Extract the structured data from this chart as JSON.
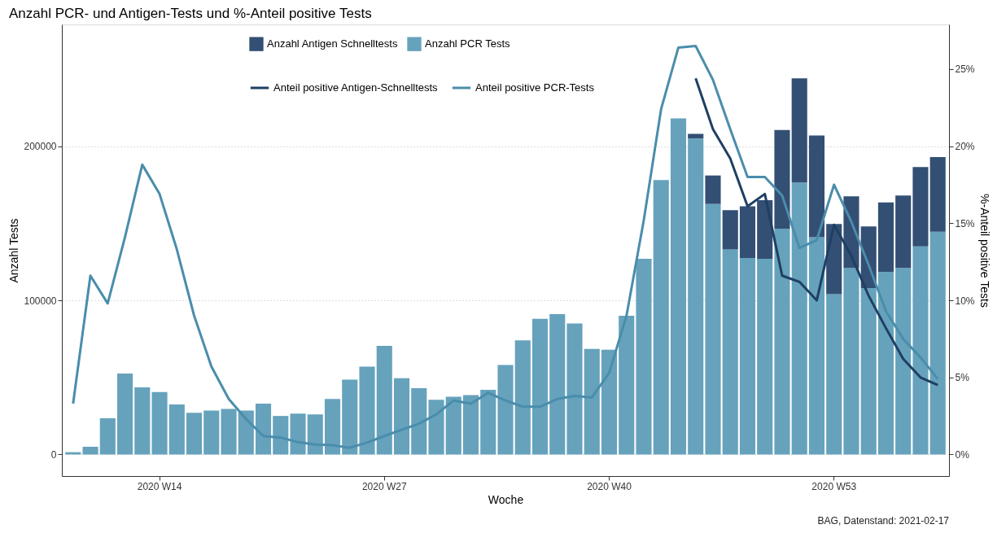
{
  "chart_data": {
    "type": "bar",
    "title": "Anzahl PCR- und Antigen-Tests und %-Anteil positive Tests",
    "xlabel": "Woche",
    "ylabel": "Anzahl Tests",
    "y2label": "%-Anteil positive Tests",
    "categories": [
      null,
      null,
      null,
      null,
      null,
      "2020 W14",
      null,
      null,
      null,
      null,
      null,
      null,
      null,
      null,
      null,
      null,
      null,
      null,
      "2020 W27",
      null,
      null,
      null,
      null,
      null,
      null,
      null,
      null,
      null,
      null,
      null,
      null,
      "2020 W40",
      null,
      null,
      null,
      null,
      null,
      null,
      null,
      null,
      null,
      null,
      null,
      null,
      "2020 W53",
      null,
      null,
      null,
      null,
      null,
      null
    ],
    "stacked": true,
    "series": [
      {
        "name": "Anzahl PCR Tests",
        "color": "#66a2bc",
        "values": [
          1500,
          5000,
          23500,
          52500,
          43500,
          40500,
          32500,
          27000,
          28500,
          29500,
          28500,
          33000,
          25000,
          26500,
          26000,
          36000,
          48500,
          57000,
          70500,
          49500,
          43000,
          35500,
          37500,
          38500,
          42000,
          58000,
          74000,
          88000,
          91000,
          85000,
          68500,
          68000,
          90000,
          127000,
          178000,
          218000,
          205000,
          162500,
          133000,
          127500,
          127000,
          146500,
          176500,
          141000,
          104000,
          121000,
          108000,
          118500,
          121000,
          135000,
          144500
        ]
      },
      {
        "name": "Anzahl Antigen Schnelltests",
        "color": "#334f74",
        "values": [
          null,
          null,
          null,
          null,
          null,
          null,
          null,
          null,
          null,
          null,
          null,
          null,
          null,
          null,
          null,
          null,
          null,
          null,
          null,
          null,
          null,
          null,
          null,
          null,
          null,
          null,
          null,
          null,
          null,
          null,
          null,
          null,
          null,
          null,
          null,
          null,
          3000,
          18500,
          25500,
          33500,
          38000,
          64000,
          67500,
          66000,
          45500,
          46500,
          40000,
          45000,
          47000,
          51500,
          48500
        ]
      },
      {
        "name": "Anteil positive Antigen-Schnelltests",
        "type": "line",
        "axis": "y2",
        "color": "#1f3f63",
        "values": [
          null,
          null,
          null,
          null,
          null,
          null,
          null,
          null,
          null,
          null,
          null,
          null,
          null,
          null,
          null,
          null,
          null,
          null,
          null,
          null,
          null,
          null,
          null,
          null,
          null,
          null,
          null,
          null,
          null,
          null,
          null,
          null,
          null,
          null,
          null,
          null,
          24.4,
          21.1,
          19.2,
          16.1,
          16.9,
          11.6,
          11.2,
          10.0,
          14.9,
          12.9,
          10.3,
          8.2,
          6.2,
          5.0,
          4.5
        ]
      },
      {
        "name": "Anteil positive PCR-Tests",
        "type": "line",
        "axis": "y2",
        "color": "#4a8dab",
        "values": [
          3.3,
          11.6,
          9.8,
          14.1,
          18.8,
          16.9,
          13.3,
          9.0,
          5.7,
          3.6,
          2.3,
          1.2,
          1.1,
          0.8,
          0.65,
          0.6,
          0.44,
          0.77,
          1.2,
          1.6,
          2.0,
          2.6,
          3.5,
          3.3,
          4.0,
          3.5,
          3.1,
          3.1,
          3.6,
          3.8,
          3.7,
          5.3,
          9.0,
          15.2,
          22.4,
          26.4,
          26.5,
          24.3,
          21.1,
          18.0,
          18.0,
          16.8,
          13.4,
          13.9,
          17.5,
          15.1,
          12.3,
          9.3,
          7.5,
          6.3,
          4.9
        ]
      }
    ],
    "ylim": [
      -14000,
      279000
    ],
    "yticks": [
      0,
      100000,
      200000
    ],
    "y2lim": [
      -1.4,
      27.9
    ],
    "y2ticks": [
      {
        "value": 0,
        "label": "0%"
      },
      {
        "value": 5,
        "label": "5%"
      },
      {
        "value": 10,
        "label": "10%"
      },
      {
        "value": 15,
        "label": "15%"
      },
      {
        "value": 20,
        "label": "20%"
      },
      {
        "value": 25,
        "label": "25%"
      }
    ],
    "grid": "y",
    "legend": "top",
    "annotations": [
      "BAG, Datenstand: 2021-02-17"
    ]
  }
}
